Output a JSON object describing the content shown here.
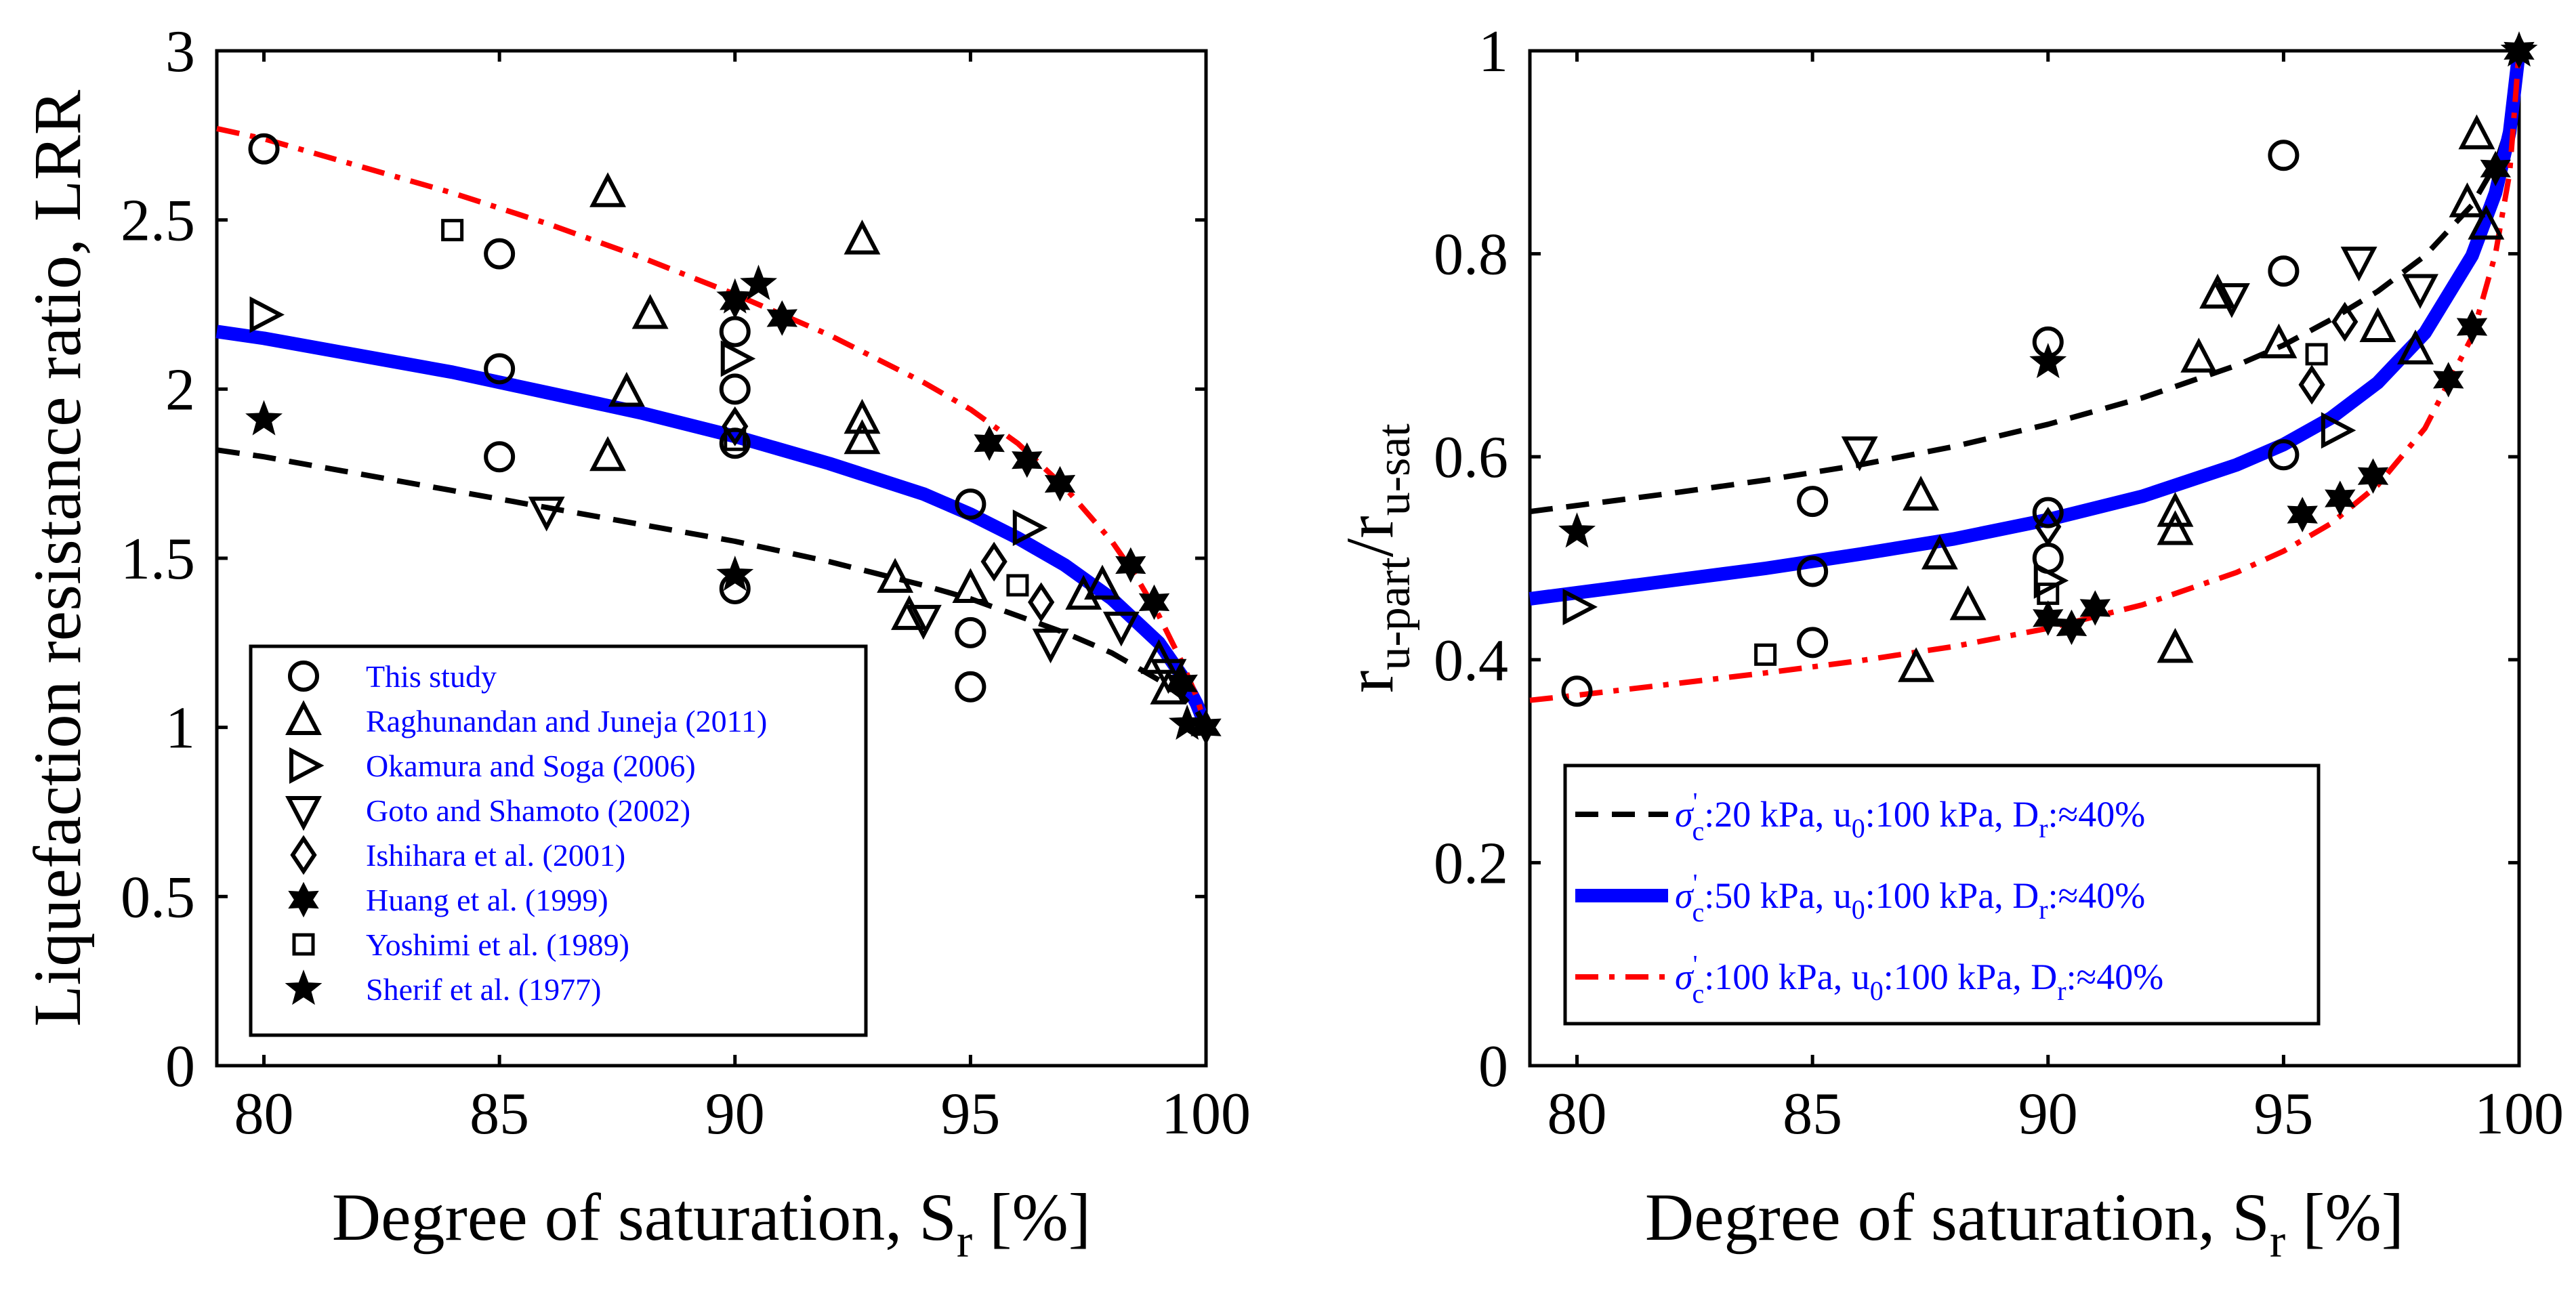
{
  "chart_data": [
    {
      "type": "scatter+line",
      "xlabel": "Degree of saturation, S",
      "xlabel_sub": "r",
      "xlabel_tail": " [%]",
      "ylabel": "Liquefaction resistance ratio, LRR",
      "xlim": [
        79,
        100
      ],
      "ylim": [
        0,
        3
      ],
      "xticks": [
        80,
        85,
        90,
        95,
        100
      ],
      "yticks": [
        0,
        0.5,
        1,
        1.5,
        2,
        2.5,
        3
      ],
      "ytick_labels": [
        "0",
        "0.5",
        "1",
        "1.5",
        "2",
        "2.5",
        "3"
      ],
      "curves": [
        {
          "name": "sigma50",
          "color": "#0000ff",
          "style": "solid",
          "points": [
            [
              79,
              2.17
            ],
            [
              80,
              2.15
            ],
            [
              82,
              2.1
            ],
            [
              84,
              2.05
            ],
            [
              86,
              1.99
            ],
            [
              88,
              1.93
            ],
            [
              90,
              1.86
            ],
            [
              92,
              1.78
            ],
            [
              94,
              1.69
            ],
            [
              95,
              1.63
            ],
            [
              96,
              1.56
            ],
            [
              97,
              1.48
            ],
            [
              98,
              1.38
            ],
            [
              99,
              1.25
            ],
            [
              99.5,
              1.15
            ],
            [
              99.8,
              1.07
            ],
            [
              100,
              1.0
            ]
          ]
        },
        {
          "name": "sigma20",
          "color": "#000000",
          "style": "dash",
          "points": [
            [
              79,
              1.82
            ],
            [
              80,
              1.8
            ],
            [
              82,
              1.75
            ],
            [
              84,
              1.7
            ],
            [
              86,
              1.65
            ],
            [
              88,
              1.6
            ],
            [
              90,
              1.55
            ],
            [
              92,
              1.49
            ],
            [
              94,
              1.42
            ],
            [
              95,
              1.38
            ],
            [
              96,
              1.33
            ],
            [
              97,
              1.28
            ],
            [
              98,
              1.22
            ],
            [
              99,
              1.14
            ],
            [
              99.5,
              1.09
            ],
            [
              99.8,
              1.05
            ],
            [
              100,
              1.0
            ]
          ]
        },
        {
          "name": "sigma100",
          "color": "#ff0000",
          "style": "dashdot",
          "points": [
            [
              79,
              2.77
            ],
            [
              80,
              2.74
            ],
            [
              82,
              2.66
            ],
            [
              84,
              2.58
            ],
            [
              86,
              2.49
            ],
            [
              88,
              2.39
            ],
            [
              90,
              2.28
            ],
            [
              92,
              2.16
            ],
            [
              94,
              2.02
            ],
            [
              95,
              1.94
            ],
            [
              96,
              1.84
            ],
            [
              97,
              1.71
            ],
            [
              98,
              1.55
            ],
            [
              98.5,
              1.45
            ],
            [
              99,
              1.33
            ],
            [
              99.5,
              1.19
            ],
            [
              99.8,
              1.09
            ],
            [
              100,
              1.0
            ]
          ]
        }
      ],
      "series": [
        {
          "name": "This study",
          "marker": "circle",
          "points": [
            [
              80,
              2.71
            ],
            [
              85,
              2.4
            ],
            [
              85,
              2.06
            ],
            [
              85,
              1.8
            ],
            [
              90,
              2.17
            ],
            [
              90,
              2.0
            ],
            [
              90,
              1.84
            ],
            [
              90,
              1.41
            ],
            [
              95,
              1.66
            ],
            [
              95,
              1.28
            ],
            [
              95,
              1.12
            ]
          ]
        },
        {
          "name": "Raghunandan and Juneja (2011)",
          "marker": "triangle-up",
          "points": [
            [
              87.3,
              2.58
            ],
            [
              88.2,
              2.22
            ],
            [
              87.7,
              1.99
            ],
            [
              87.3,
              1.8
            ],
            [
              92.7,
              2.44
            ],
            [
              92.7,
              1.91
            ],
            [
              92.7,
              1.85
            ],
            [
              93.4,
              1.44
            ],
            [
              93.7,
              1.33
            ],
            [
              95,
              1.41
            ],
            [
              97.4,
              1.39
            ],
            [
              97.8,
              1.42
            ],
            [
              99,
              1.2
            ],
            [
              99.2,
              1.11
            ]
          ]
        },
        {
          "name": "Okamura and Soga (2006)",
          "marker": "triangle-right",
          "points": [
            [
              80,
              2.22
            ],
            [
              90,
              2.09
            ],
            [
              96.2,
              1.59
            ]
          ]
        },
        {
          "name": "Goto and Shamoto (2002)",
          "marker": "triangle-down",
          "points": [
            [
              86,
              1.64
            ],
            [
              94,
              1.32
            ],
            [
              96.7,
              1.25
            ],
            [
              98.2,
              1.3
            ],
            [
              99.2,
              1.16
            ]
          ]
        },
        {
          "name": "Ishihara et al. (2001)",
          "marker": "diamond",
          "points": [
            [
              90,
              1.89
            ],
            [
              95.5,
              1.49
            ],
            [
              96.5,
              1.37
            ]
          ]
        },
        {
          "name": "Huang et al. (1999)",
          "marker": "hexagram",
          "points": [
            [
              90,
              2.26
            ],
            [
              91,
              2.21
            ],
            [
              95.4,
              1.84
            ],
            [
              96.2,
              1.79
            ],
            [
              96.9,
              1.72
            ],
            [
              98.4,
              1.48
            ],
            [
              98.9,
              1.37
            ],
            [
              99.5,
              1.13
            ],
            [
              100,
              1.0
            ]
          ]
        },
        {
          "name": "Yoshimi et al. (1989)",
          "marker": "square",
          "points": [
            [
              84,
              2.47
            ],
            [
              90,
              1.85
            ],
            [
              96,
              1.42
            ]
          ]
        },
        {
          "name": "Sherif et al. (1977)",
          "marker": "star",
          "points": [
            [
              80,
              1.91
            ],
            [
              90,
              1.45
            ],
            [
              90.5,
              2.31
            ],
            [
              90,
              2.27
            ],
            [
              99.6,
              1.01
            ]
          ]
        }
      ]
    },
    {
      "type": "scatter+line",
      "xlabel": "Degree of saturation, S",
      "xlabel_sub": "r",
      "xlabel_tail": " [%]",
      "ylabel_main1": "r",
      "ylabel_sub1": "u-part",
      "ylabel_main2": "/r",
      "ylabel_sub2": "u-sat",
      "xlim": [
        79,
        100
      ],
      "ylim": [
        0,
        1
      ],
      "xticks": [
        80,
        85,
        90,
        95,
        100
      ],
      "yticks": [
        0,
        0.2,
        0.4,
        0.6,
        0.8,
        1
      ],
      "ytick_labels": [
        "0",
        "0.2",
        "0.4",
        "0.6",
        "0.8",
        "1"
      ],
      "curves": [
        {
          "name": "sigma20",
          "color": "#000000",
          "style": "dash",
          "points": [
            [
              79,
              0.546
            ],
            [
              80,
              0.552
            ],
            [
              82,
              0.564
            ],
            [
              84,
              0.577
            ],
            [
              86,
              0.592
            ],
            [
              88,
              0.61
            ],
            [
              90,
              0.632
            ],
            [
              92,
              0.658
            ],
            [
              94,
              0.69
            ],
            [
              95,
              0.71
            ],
            [
              96,
              0.735
            ],
            [
              97,
              0.763
            ],
            [
              98,
              0.798
            ],
            [
              99,
              0.848
            ],
            [
              99.5,
              0.888
            ],
            [
              99.8,
              0.93
            ],
            [
              100,
              1.0
            ]
          ]
        },
        {
          "name": "sigma50",
          "color": "#0000ff",
          "style": "solid",
          "points": [
            [
              79,
              0.46
            ],
            [
              80,
              0.466
            ],
            [
              82,
              0.478
            ],
            [
              84,
              0.49
            ],
            [
              86,
              0.504
            ],
            [
              88,
              0.519
            ],
            [
              90,
              0.538
            ],
            [
              92,
              0.561
            ],
            [
              94,
              0.592
            ],
            [
              95,
              0.612
            ],
            [
              96,
              0.638
            ],
            [
              97,
              0.673
            ],
            [
              98,
              0.722
            ],
            [
              99,
              0.798
            ],
            [
              99.5,
              0.86
            ],
            [
              99.8,
              0.92
            ],
            [
              100,
              1.0
            ]
          ]
        },
        {
          "name": "sigma100",
          "color": "#ff0000",
          "style": "dashdot",
          "points": [
            [
              79,
              0.36
            ],
            [
              80,
              0.365
            ],
            [
              82,
              0.376
            ],
            [
              84,
              0.387
            ],
            [
              86,
              0.399
            ],
            [
              88,
              0.413
            ],
            [
              90,
              0.431
            ],
            [
              92,
              0.454
            ],
            [
              94,
              0.486
            ],
            [
              95,
              0.507
            ],
            [
              96,
              0.534
            ],
            [
              97,
              0.572
            ],
            [
              98,
              0.628
            ],
            [
              99,
              0.718
            ],
            [
              99.5,
              0.8
            ],
            [
              99.8,
              0.88
            ],
            [
              100,
              1.0
            ]
          ]
        }
      ],
      "legend": [
        {
          "name": "sigma20",
          "text": ":20 kPa, u",
          "text2": ":100 kPa, D",
          "text3": ":≈40%"
        },
        {
          "name": "sigma50",
          "text": ":50 kPa, u",
          "text2": ":100 kPa, D",
          "text3": ":≈40%"
        },
        {
          "name": "sigma100",
          "text": ":100 kPa, u",
          "text2": ":100 kPa, D",
          "text3": ":≈40%"
        }
      ],
      "legend_symbols": {
        "sigma": "σ",
        "prime": "'",
        "c": "c",
        "zero": "0",
        "r": "r"
      },
      "series": [
        {
          "name": "This study",
          "marker": "circle",
          "points": [
            [
              80,
              0.369
            ],
            [
              85,
              0.556
            ],
            [
              85,
              0.487
            ],
            [
              85,
              0.417
            ],
            [
              90,
              0.713
            ],
            [
              90,
              0.545
            ],
            [
              90,
              0.5
            ],
            [
              95,
              0.897
            ],
            [
              95,
              0.783
            ],
            [
              95,
              0.602
            ]
          ]
        },
        {
          "name": "Raghunandan and Juneja (2011)",
          "marker": "triangle-up",
          "points": [
            [
              87.3,
              0.561
            ],
            [
              87.7,
              0.503
            ],
            [
              88.3,
              0.453
            ],
            [
              87.2,
              0.392
            ],
            [
              92.7,
              0.545
            ],
            [
              92.7,
              0.527
            ],
            [
              92.7,
              0.411
            ],
            [
              93.2,
              0.697
            ],
            [
              93.6,
              0.76
            ],
            [
              94.9,
              0.711
            ],
            [
              97,
              0.727
            ],
            [
              97.8,
              0.705
            ],
            [
              99.1,
              0.917
            ],
            [
              98.9,
              0.85
            ],
            [
              99.3,
              0.828
            ]
          ]
        },
        {
          "name": "Okamura and Soga (2006)",
          "marker": "triangle-right",
          "points": [
            [
              80,
              0.452
            ],
            [
              90,
              0.478
            ],
            [
              96.1,
              0.626
            ]
          ]
        },
        {
          "name": "Goto and Shamoto (2002)",
          "marker": "triangle-down",
          "points": [
            [
              86,
              0.606
            ],
            [
              93.9,
              0.757
            ],
            [
              96.6,
              0.793
            ],
            [
              97.9,
              0.766
            ]
          ]
        },
        {
          "name": "Ishihara et al. (2001)",
          "marker": "diamond",
          "points": [
            [
              90,
              0.531
            ],
            [
              95.6,
              0.671
            ],
            [
              96.3,
              0.733
            ]
          ]
        },
        {
          "name": "Huang et al. (1999)",
          "marker": "hexagram",
          "points": [
            [
              90,
              0.441
            ],
            [
              90.5,
              0.432
            ],
            [
              91,
              0.451
            ],
            [
              95.4,
              0.543
            ],
            [
              96.2,
              0.559
            ],
            [
              96.9,
              0.581
            ],
            [
              98.5,
              0.676
            ],
            [
              99,
              0.728
            ],
            [
              99.5,
              0.884
            ],
            [
              100,
              1.0
            ]
          ]
        },
        {
          "name": "Yoshimi et al. (1989)",
          "marker": "square",
          "points": [
            [
              84,
              0.405
            ],
            [
              90,
              0.465
            ],
            [
              95.7,
              0.701
            ]
          ]
        },
        {
          "name": "Sherif et al. (1977)",
          "marker": "star",
          "points": [
            [
              80,
              0.526
            ],
            [
              90,
              0.693
            ],
            [
              100,
              1.0
            ]
          ]
        }
      ]
    }
  ]
}
